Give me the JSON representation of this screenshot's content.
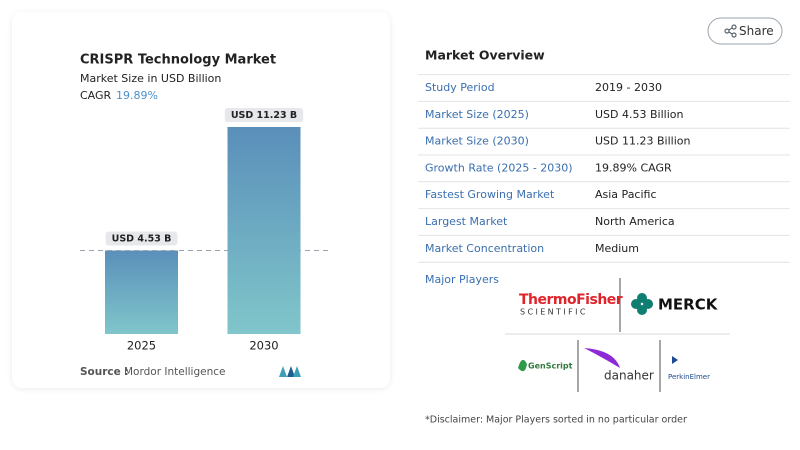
{
  "chart_data": {
    "type": "bar",
    "title": "CRISPR Technology Market",
    "subtitle": "Market Size in USD Billion",
    "cagr_label": "CAGR",
    "cagr": "19.89%",
    "categories": [
      "2025",
      "2030"
    ],
    "values": [
      4.53,
      11.23
    ],
    "value_labels": [
      "USD 4.53 B",
      "USD 11.23 B"
    ],
    "source_label": "Source :",
    "source": "Mordor Intelligence"
  },
  "share": "Share",
  "overview": {
    "title": "Market Overview",
    "rows": [
      [
        "Study Period",
        "2019 - 2030"
      ],
      [
        "Market Size (2025)",
        "USD 4.53 Billion"
      ],
      [
        "Market Size (2030)",
        "USD 11.23 Billion"
      ],
      [
        "Growth Rate (2025 - 2030)",
        "19.89% CAGR"
      ],
      [
        "Fastest Growing Market",
        "Asia Pacific"
      ],
      [
        "Largest Market",
        "North America"
      ],
      [
        "Market Concentration",
        "Medium"
      ]
    ]
  },
  "major_players": {
    "title": "Major Players",
    "players": [
      {
        "name": "ThermoFisher",
        "sub": "SCIENTIFIC"
      },
      {
        "name": "MERCK"
      },
      {
        "name": "GenScript"
      },
      {
        "name": "danaher"
      },
      {
        "name": "PerkinElmer"
      }
    ]
  },
  "disclaimer": "*Disclaimer: Major Players sorted in no particular order"
}
